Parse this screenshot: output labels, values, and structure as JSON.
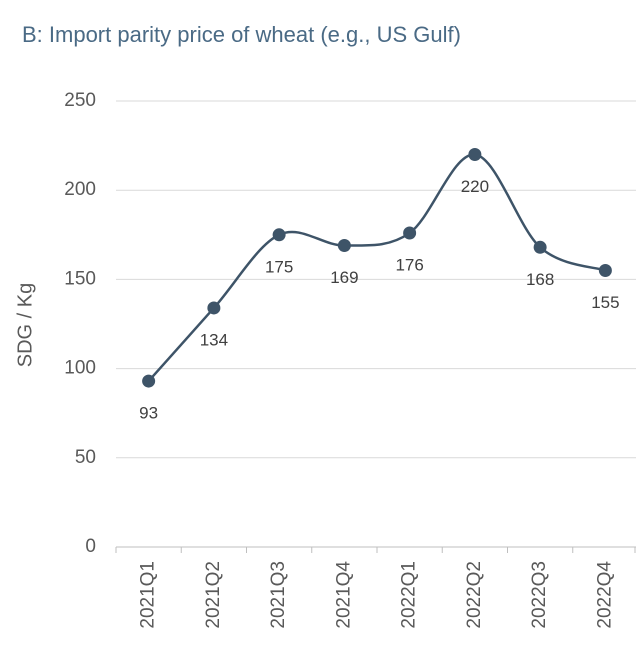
{
  "chart_data": {
    "type": "line",
    "title": "B:  Import parity price of wheat (e.g., US Gulf)",
    "y_label": "SDG / Kg",
    "categories": [
      "2021Q1",
      "2021Q2",
      "2021Q3",
      "2021Q4",
      "2022Q1",
      "2022Q2",
      "2022Q3",
      "2022Q4"
    ],
    "values": [
      93,
      134,
      175,
      169,
      176,
      220,
      168,
      155
    ],
    "color": "#3e5468",
    "smooth": true,
    "ylim": [
      0,
      250
    ],
    "yticks": [
      0,
      50,
      100,
      150,
      200,
      250
    ],
    "grid": true
  }
}
